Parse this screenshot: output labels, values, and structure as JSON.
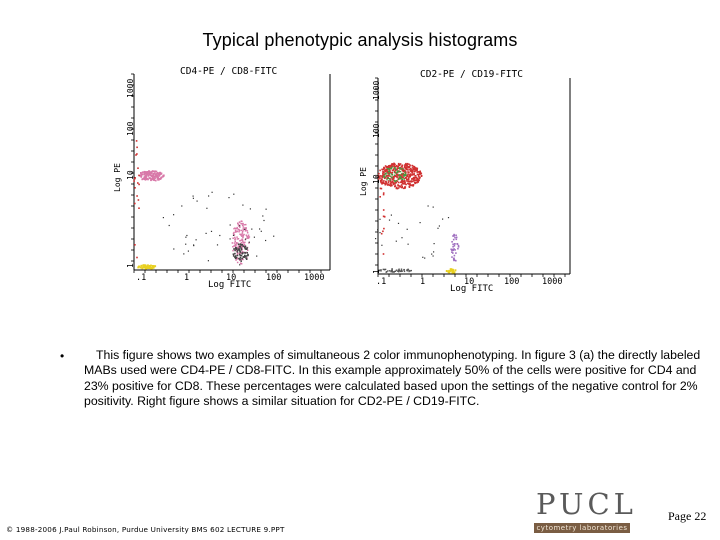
{
  "slide": {
    "title": "Typical phenotypic analysis histograms",
    "caption": "This figure shows two examples of simultaneous 2 color immunophenotyping. In figure 3 (a) the directly labeled MABs used were CD4-PE / CD8-FITC. In this example approximately 50% of the cells were positive for CD4 and 23% positive for CD8. These percentages were calculated based upon the settings of the negative control for 2% positivity. Right figure shows a similar situation for CD2-PE / CD19-FITC.",
    "bullet": "•",
    "footer": "© 1988-2006 J.Paul Robinson, Purdue University BMS 602 LECTURE 9.PPT",
    "page_number": "Page 22"
  },
  "logo": {
    "word": "PUCL",
    "band": "cytometry laboratories"
  },
  "plots": [
    {
      "title": "CD4-PE / CD8-FITC",
      "ylabel": "Log PE",
      "xlabel": "Log FITC",
      "yticks": [
        "1",
        "10",
        "100",
        "1000"
      ],
      "xticks": [
        ".1",
        "1",
        "10",
        "100",
        "1000"
      ]
    },
    {
      "title": "CD2-PE / CD19-FITC",
      "ylabel": "Log PE",
      "xlabel": "Log FITC",
      "yticks": [
        "1",
        "10",
        "100",
        "1000"
      ],
      "xticks": [
        ".1",
        "1",
        "10",
        "100",
        "1000"
      ]
    }
  ],
  "colors": {
    "population_main": "#d03030",
    "population_pink": "#d878a8",
    "population_green": "#40a040",
    "population_yellow": "#e8d020",
    "population_purple": "#a070c0",
    "axis": "#000000"
  }
}
